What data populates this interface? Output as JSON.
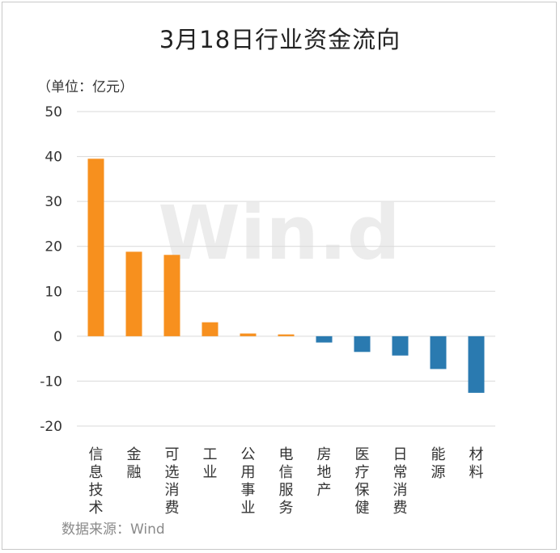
{
  "title": "3月18日行业资金流向",
  "unit_label": "（单位：亿元）",
  "source": "数据来源：Wind",
  "watermark": "Win.d",
  "colors": {
    "positive": "#f7901e",
    "negative": "#2a7ab0",
    "grid": "#d9d9d9"
  },
  "chart_data": {
    "type": "bar",
    "title": "3月18日行业资金流向",
    "ylabel": "（单位：亿元）",
    "categories": [
      "信息技术",
      "金融",
      "可选消费",
      "工业",
      "公用事业",
      "电信服务",
      "房地产",
      "医疗保健",
      "日常消费",
      "能源",
      "材料"
    ],
    "values": [
      39.5,
      18.8,
      18.1,
      3.1,
      0.6,
      0.4,
      -1.4,
      -3.5,
      -4.3,
      -7.3,
      -12.6
    ],
    "ylim": [
      -20,
      50
    ],
    "yticks": [
      50,
      40,
      30,
      20,
      10,
      0,
      -10,
      -20
    ],
    "grid": true,
    "legend": "none"
  }
}
